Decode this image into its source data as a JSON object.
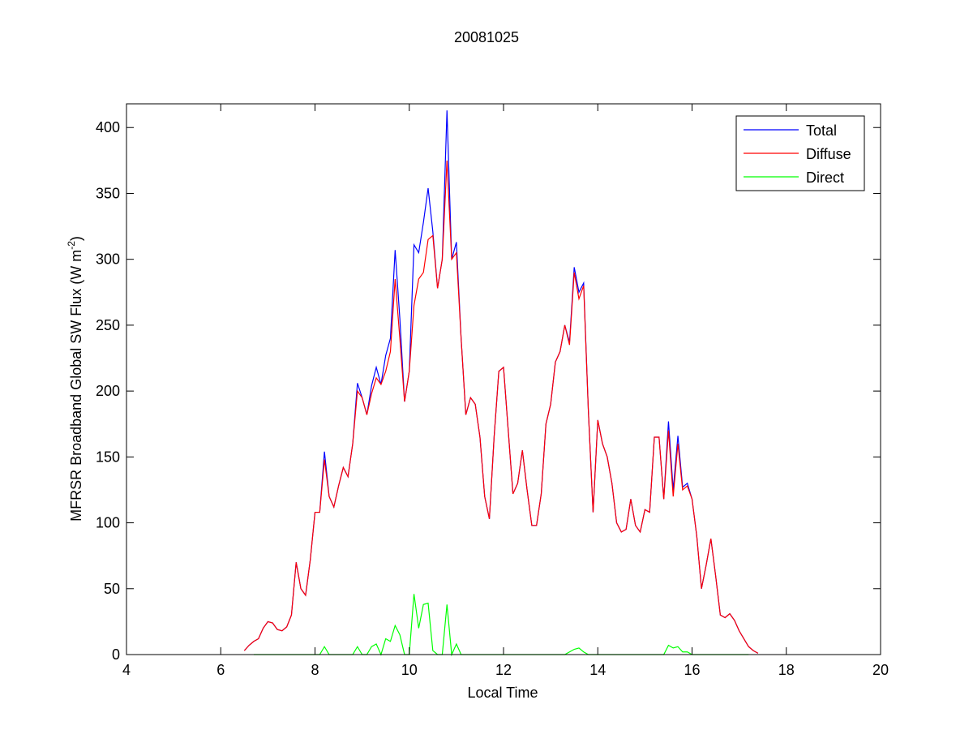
{
  "chart_data": {
    "type": "line",
    "title": "20081025",
    "xlabel": "Local Time",
    "ylabel": [
      "MFRSR Broadband Global SW Flux (W m",
      "-2",
      ")"
    ],
    "xlim": [
      4,
      20
    ],
    "xticks": [
      4,
      6,
      8,
      10,
      12,
      14,
      16,
      18,
      20
    ],
    "ylim": [
      0,
      418
    ],
    "yticks": [
      0,
      50,
      100,
      150,
      200,
      250,
      300,
      350,
      400
    ],
    "grid": false,
    "legend": "upper right",
    "x": [
      6.5,
      6.6,
      6.7,
      6.8,
      6.9,
      7.0,
      7.1,
      7.2,
      7.3,
      7.4,
      7.5,
      7.6,
      7.7,
      7.8,
      7.9,
      8.0,
      8.1,
      8.2,
      8.3,
      8.4,
      8.5,
      8.6,
      8.7,
      8.8,
      8.9,
      9.0,
      9.1,
      9.2,
      9.3,
      9.4,
      9.5,
      9.6,
      9.7,
      9.8,
      9.9,
      10.0,
      10.1,
      10.2,
      10.3,
      10.4,
      10.5,
      10.6,
      10.7,
      10.8,
      10.9,
      11.0,
      11.1,
      11.2,
      11.3,
      11.4,
      11.5,
      11.6,
      11.7,
      11.8,
      11.9,
      12.0,
      12.1,
      12.2,
      12.3,
      12.4,
      12.5,
      12.6,
      12.7,
      12.8,
      12.9,
      13.0,
      13.1,
      13.2,
      13.3,
      13.4,
      13.5,
      13.6,
      13.7,
      13.8,
      13.9,
      14.0,
      14.1,
      14.2,
      14.3,
      14.4,
      14.5,
      14.6,
      14.7,
      14.8,
      14.9,
      15.0,
      15.1,
      15.2,
      15.3,
      15.4,
      15.5,
      15.6,
      15.7,
      15.8,
      15.9,
      16.0,
      16.1,
      16.2,
      16.3,
      16.4,
      16.5,
      16.6,
      16.7,
      16.8,
      16.9,
      17.0,
      17.1,
      17.2,
      17.3,
      17.4
    ],
    "series": [
      {
        "name": "Total",
        "color": "#0000ff",
        "values": [
          3,
          7,
          10,
          12,
          20,
          25,
          24,
          19,
          18,
          21,
          30,
          70,
          50,
          45,
          72,
          108,
          108,
          154,
          120,
          112,
          128,
          142,
          135,
          160,
          206,
          195,
          182,
          204,
          218,
          205,
          227,
          240,
          307,
          255,
          192,
          215,
          311,
          305,
          328,
          354,
          321,
          278,
          300,
          413,
          300,
          313,
          240,
          182,
          195,
          190,
          165,
          120,
          103,
          165,
          215,
          218,
          170,
          122,
          130,
          155,
          125,
          98,
          98,
          122,
          175,
          190,
          222,
          230,
          250,
          237,
          294,
          275,
          282,
          185,
          108,
          178,
          160,
          150,
          130,
          100,
          93,
          95,
          118,
          98,
          93,
          110,
          108,
          165,
          165,
          118,
          177,
          125,
          166,
          127,
          130,
          118,
          90,
          50,
          68,
          88,
          60,
          30,
          28,
          31,
          26,
          18,
          12,
          6,
          3,
          1
        ]
      },
      {
        "name": "Diffuse",
        "color": "#ff0000",
        "values": [
          3,
          7,
          10,
          12,
          20,
          25,
          24,
          19,
          18,
          21,
          30,
          70,
          50,
          45,
          72,
          108,
          108,
          148,
          120,
          112,
          128,
          142,
          135,
          160,
          200,
          195,
          182,
          198,
          210,
          205,
          215,
          230,
          285,
          240,
          192,
          215,
          265,
          285,
          290,
          315,
          318,
          278,
          300,
          375,
          300,
          305,
          240,
          182,
          195,
          190,
          165,
          120,
          103,
          165,
          215,
          218,
          170,
          122,
          130,
          155,
          125,
          98,
          98,
          122,
          175,
          190,
          222,
          230,
          250,
          235,
          290,
          270,
          280,
          185,
          108,
          178,
          160,
          150,
          130,
          100,
          93,
          95,
          118,
          98,
          93,
          110,
          108,
          165,
          165,
          118,
          170,
          120,
          160,
          125,
          128,
          118,
          90,
          50,
          68,
          88,
          60,
          30,
          28,
          31,
          26,
          18,
          12,
          6,
          3,
          1
        ]
      },
      {
        "name": "Direct",
        "color": "#00ff00",
        "values": [
          null,
          null,
          0,
          0,
          0,
          0,
          0,
          0,
          0,
          0,
          0,
          0,
          0,
          0,
          0,
          0,
          0,
          6,
          0,
          0,
          0,
          0,
          0,
          0,
          6,
          0,
          0,
          6,
          8,
          0,
          12,
          10,
          22,
          15,
          0,
          0,
          46,
          20,
          38,
          39,
          3,
          0,
          0,
          38,
          0,
          8,
          0,
          0,
          0,
          0,
          0,
          0,
          0,
          0,
          0,
          0,
          0,
          0,
          0,
          0,
          0,
          0,
          0,
          0,
          0,
          0,
          0,
          0,
          0,
          2,
          4,
          5,
          2,
          0,
          0,
          0,
          0,
          0,
          0,
          0,
          0,
          0,
          0,
          0,
          0,
          0,
          0,
          0,
          0,
          0,
          7,
          5,
          6,
          2,
          2,
          0,
          0,
          0,
          0,
          0,
          0,
          0,
          0,
          0,
          0,
          0,
          0,
          0,
          null,
          null
        ]
      }
    ]
  }
}
